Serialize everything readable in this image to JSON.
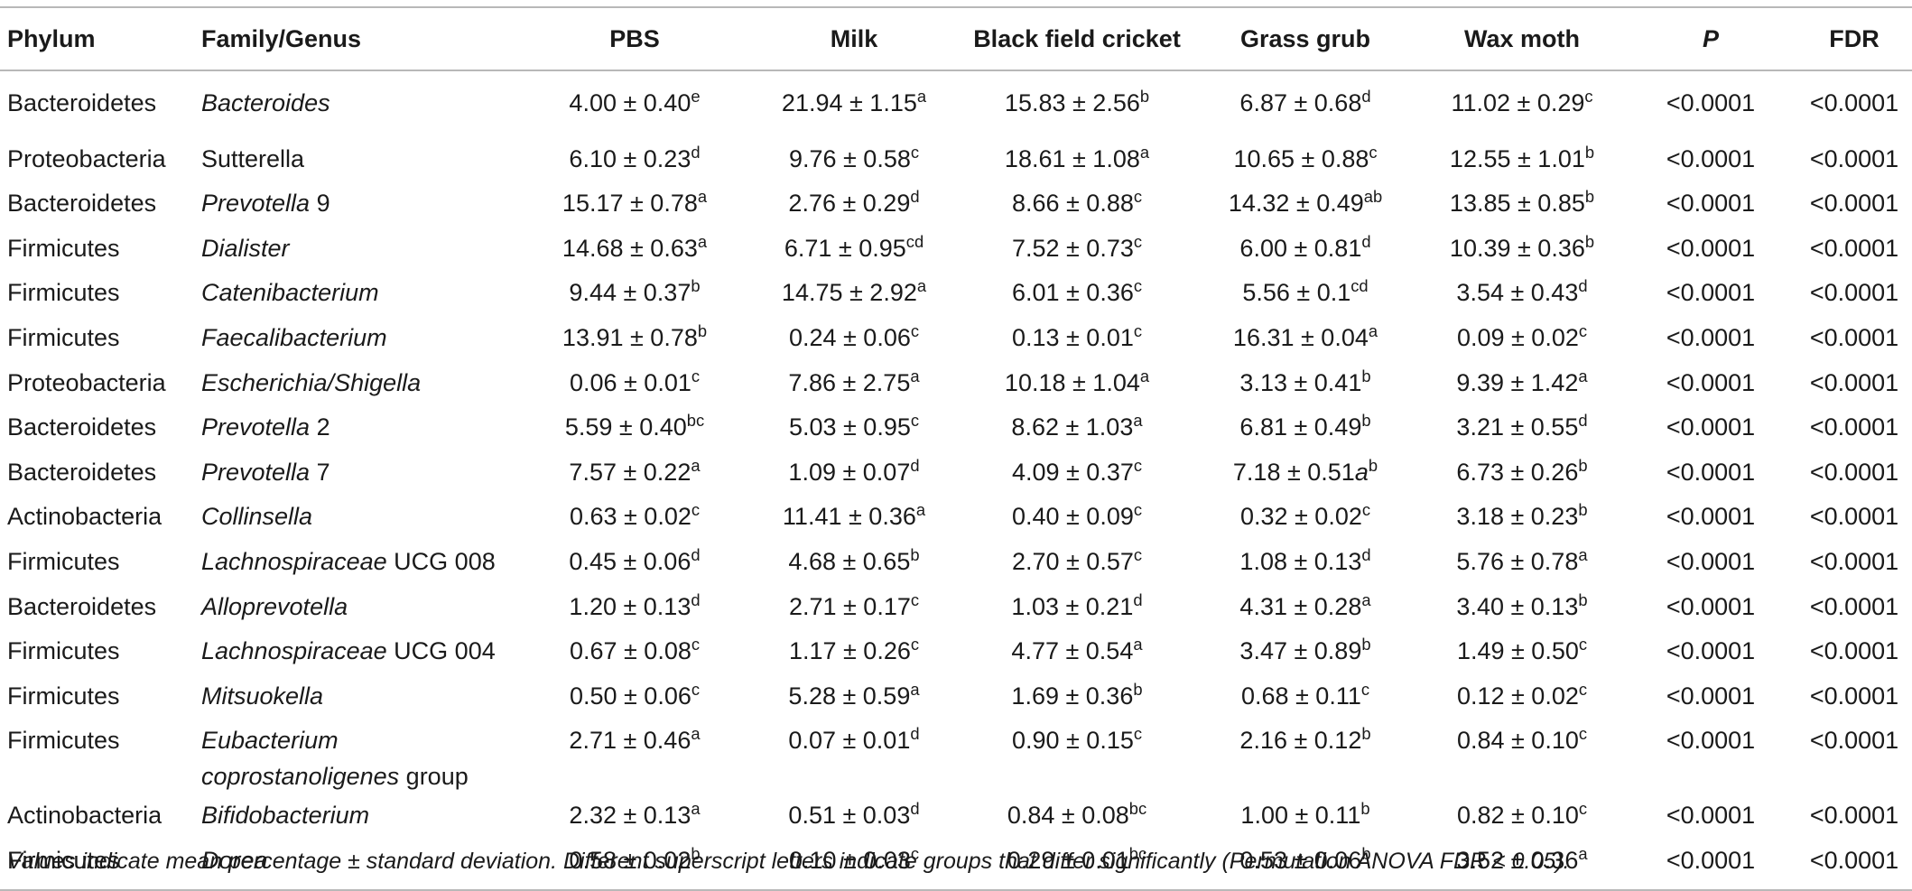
{
  "table": {
    "header": [
      "Phylum",
      "Family/Genus",
      "PBS",
      "Milk",
      "Black field cricket",
      "Grass grub",
      "Wax moth",
      "P",
      "FDR"
    ],
    "rows": [
      [
        "Bacteroidetes",
        {
          "italic": "Bacteroides"
        },
        {
          "value": "4.00 ± 0.40",
          "sup": "e"
        },
        {
          "value": "21.94 ± 1.15",
          "sup": "a"
        },
        {
          "value": "15.83 ± 2.56",
          "sup": "b"
        },
        {
          "value": "6.87 ± 0.68",
          "sup": "d"
        },
        {
          "value": "11.02 ± 0.29",
          "sup": "c"
        },
        "<0.0001",
        "<0.0001"
      ],
      [
        "Proteobacteria",
        {
          "rest": "Sutterella"
        },
        {
          "value": "6.10 ± 0.23",
          "sup": "d"
        },
        {
          "value": "9.76 ± 0.58",
          "sup": "c"
        },
        {
          "value": "18.61 ± 1.08",
          "sup": "a"
        },
        {
          "value": "10.65 ± 0.88",
          "sup": "c"
        },
        {
          "value": "12.55 ± 1.01",
          "sup": "b"
        },
        "<0.0001",
        "<0.0001"
      ],
      [
        "Bacteroidetes",
        {
          "italic": "Prevotella",
          "rest": "9"
        },
        {
          "value": "15.17 ± 0.78",
          "sup": "a"
        },
        {
          "value": "2.76 ± 0.29",
          "sup": "d"
        },
        {
          "value": "8.66 ± 0.88",
          "sup": "c"
        },
        {
          "value": "14.32 ± 0.49",
          "sup": "ab"
        },
        {
          "value": "13.85 ± 0.85",
          "sup": "b"
        },
        "<0.0001",
        "<0.0001"
      ],
      [
        "Firmicutes",
        {
          "italic": "Dialister"
        },
        {
          "value": "14.68 ± 0.63",
          "sup": "a"
        },
        {
          "value": "6.71 ± 0.95",
          "sup": "cd"
        },
        {
          "value": "7.52 ± 0.73",
          "sup": "c"
        },
        {
          "value": "6.00 ± 0.81",
          "sup": "d"
        },
        {
          "value": "10.39 ± 0.36",
          "sup": "b"
        },
        "<0.0001",
        "<0.0001"
      ],
      [
        "Firmicutes",
        {
          "italic": "Catenibacterium"
        },
        {
          "value": "9.44 ± 0.37",
          "sup": "b"
        },
        {
          "value": "14.75 ± 2.92",
          "sup": "a"
        },
        {
          "value": "6.01 ± 0.36",
          "sup": "c"
        },
        {
          "value": "5.56 ± 0.1",
          "sup": "cd"
        },
        {
          "value": "3.54 ± 0.43",
          "sup": "d"
        },
        "<0.0001",
        "<0.0001"
      ],
      [
        "Firmicutes",
        {
          "italic": "Faecalibacterium"
        },
        {
          "value": "13.91 ± 0.78",
          "sup": "b"
        },
        {
          "value": "0.24 ± 0.06",
          "sup": "c"
        },
        {
          "value": "0.13 ± 0.01",
          "sup": "c"
        },
        {
          "value": "16.31 ± 0.04",
          "sup": "a"
        },
        {
          "value": "0.09 ± 0.02",
          "sup": "c"
        },
        "<0.0001",
        "<0.0001"
      ],
      [
        "Proteobacteria",
        {
          "italic": "Escherichia/Shigella"
        },
        {
          "value": "0.06 ± 0.01",
          "sup": "c"
        },
        {
          "value": "7.86 ± 2.75",
          "sup": "a"
        },
        {
          "value": "10.18 ± 1.04",
          "sup": "a"
        },
        {
          "value": "3.13 ± 0.41",
          "sup": "b"
        },
        {
          "value": "9.39 ± 1.42",
          "sup": "a"
        },
        "<0.0001",
        "<0.0001"
      ],
      [
        "Bacteroidetes",
        {
          "italic": "Prevotella",
          "rest": "2"
        },
        {
          "value": "5.59 ± 0.40",
          "sup": "bc"
        },
        {
          "value": "5.03 ± 0.95",
          "sup": "c"
        },
        {
          "value": "8.62 ± 1.03",
          "sup": "a"
        },
        {
          "value": "6.81 ± 0.49",
          "sup": "b"
        },
        {
          "value": "3.21 ± 0.55",
          "sup": "d"
        },
        "<0.0001",
        "<0.0001"
      ],
      [
        "Bacteroidetes",
        {
          "italic": "Prevotella",
          "rest": "7"
        },
        {
          "value": "7.57 ± 0.22",
          "sup": "a"
        },
        {
          "value": "1.09 ± 0.07",
          "sup": "d"
        },
        {
          "value": "4.09 ± 0.37",
          "sup": "c"
        },
        {
          "value": "7.18 ± 0.51",
          "italic": "a",
          "sup": "b"
        },
        {
          "value": "6.73 ± 0.26",
          "sup": "b"
        },
        "<0.0001",
        "<0.0001"
      ],
      [
        "Actinobacteria",
        {
          "italic": "Collinsella"
        },
        {
          "value": "0.63 ± 0.02",
          "sup": "c"
        },
        {
          "value": "11.41 ± 0.36",
          "sup": "a"
        },
        {
          "value": "0.40 ± 0.09",
          "sup": "c"
        },
        {
          "value": "0.32 ± 0.02",
          "sup": "c"
        },
        {
          "value": "3.18 ± 0.23",
          "sup": "b"
        },
        "<0.0001",
        "<0.0001"
      ],
      [
        "Firmicutes",
        {
          "italic": "Lachnospiraceae",
          "rest": "UCG 008"
        },
        {
          "value": "0.45 ± 0.06",
          "sup": "d"
        },
        {
          "value": "4.68 ± 0.65",
          "sup": "b"
        },
        {
          "value": "2.70 ± 0.57",
          "sup": "c"
        },
        {
          "value": "1.08 ± 0.13",
          "sup": "d"
        },
        {
          "value": "5.76 ± 0.78",
          "sup": "a"
        },
        "<0.0001",
        "<0.0001"
      ],
      [
        "Bacteroidetes",
        {
          "italic": "Alloprevotella"
        },
        {
          "value": "1.20 ± 0.13",
          "sup": "d"
        },
        {
          "value": "2.71 ± 0.17",
          "sup": "c"
        },
        {
          "value": "1.03 ± 0.21",
          "sup": "d"
        },
        {
          "value": "4.31 ± 0.28",
          "sup": "a"
        },
        {
          "value": "3.40 ± 0.13",
          "sup": "b"
        },
        "<0.0001",
        "<0.0001"
      ],
      [
        "Firmicutes",
        {
          "italic": "Lachnospiraceae",
          "rest": "UCG 004"
        },
        {
          "value": "0.67 ± 0.08",
          "sup": "c"
        },
        {
          "value": "1.17 ± 0.26",
          "sup": "c"
        },
        {
          "value": "4.77 ± 0.54",
          "sup": "a"
        },
        {
          "value": "3.47 ± 0.89",
          "sup": "b"
        },
        {
          "value": "1.49 ± 0.50",
          "sup": "c"
        },
        "<0.0001",
        "<0.0001"
      ],
      [
        "Firmicutes",
        {
          "italic": "Mitsuokella"
        },
        {
          "value": "0.50 ± 0.06",
          "sup": "c"
        },
        {
          "value": "5.28 ± 0.59",
          "sup": "a"
        },
        {
          "value": "1.69 ± 0.36",
          "sup": "b"
        },
        {
          "value": "0.68 ± 0.11",
          "sup": "c"
        },
        {
          "value": "0.12 ± 0.02",
          "sup": "c"
        },
        "<0.0001",
        "<0.0001"
      ],
      [
        "Firmicutes",
        {
          "italic": "Eubacterium coprostanoligenes",
          "rest": "group"
        },
        {
          "value": "2.71 ± 0.46",
          "sup": "a"
        },
        {
          "value": "0.07 ± 0.01",
          "sup": "d"
        },
        {
          "value": "0.90 ± 0.15",
          "sup": "c"
        },
        {
          "value": "2.16 ± 0.12",
          "sup": "b"
        },
        {
          "value": "0.84 ± 0.10",
          "sup": "c"
        },
        "<0.0001",
        "<0.0001"
      ],
      [
        "Actinobacteria",
        {
          "italic": "Bifidobacterium"
        },
        {
          "value": "2.32 ± 0.13",
          "sup": "a"
        },
        {
          "value": "0.51 ± 0.03",
          "sup": "d"
        },
        {
          "value": "0.84 ± 0.08",
          "sup": "bc"
        },
        {
          "value": "1.00 ± 0.11",
          "sup": "b"
        },
        {
          "value": "0.82 ± 0.10",
          "sup": "c"
        },
        "<0.0001",
        "<0.0001"
      ],
      [
        "Firmicutes",
        {
          "italic": "Dorea"
        },
        {
          "value": "0.58 ± 0.02",
          "sup": "b"
        },
        {
          "value": "0.10 ± 0.03",
          "sup": "c"
        },
        {
          "value": "0.29 ± 0.01",
          "sup": "bc"
        },
        {
          "value": "0.53 ± 0.06",
          "sup": "b"
        },
        {
          "value": "3.52 ± 0.36",
          "sup": "a"
        },
        "<0.0001",
        "<0.0001"
      ]
    ],
    "footnote": "Values indicate mean percentage ± standard deviation. Different superscript letters indicate groups that differ significantly (Permutation ANOVA FDR < 0.05)."
  }
}
